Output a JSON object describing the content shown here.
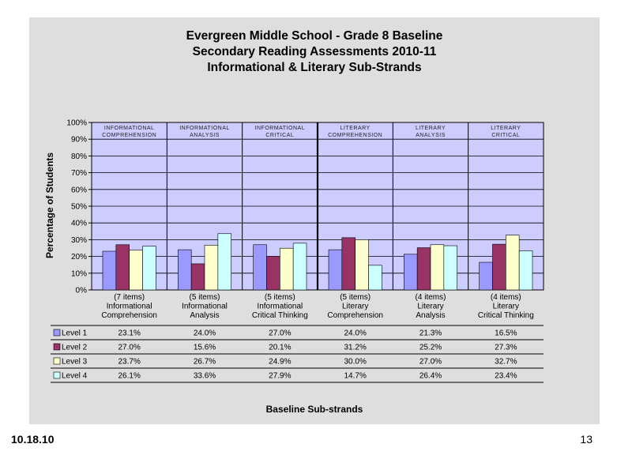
{
  "slide": {
    "title_lines": [
      "Evergreen Middle School  - Grade 8 Baseline",
      "Secondary Reading Assessments 2010-11",
      "Informational & Literary Sub-Strands"
    ],
    "footer_date": "10.18.10",
    "page_number": "13"
  },
  "chart_data": {
    "type": "bar",
    "title": "Evergreen Middle School  - Grade 8 Baseline Secondary Reading Assessments 2010-11 Informational & Literary Sub-Strands",
    "xlabel": "Baseline Sub-strands",
    "ylabel": "Percentage of Students",
    "ylim": [
      0,
      100
    ],
    "y_ticks": [
      "0%",
      "10%",
      "20%",
      "30%",
      "40%",
      "50%",
      "60%",
      "70%",
      "80%",
      "90%",
      "100%"
    ],
    "grid": true,
    "categories": [
      [
        "(7 items)",
        "Informational",
        "Comprehension"
      ],
      [
        "(5 items)",
        "Informational",
        "Analysis"
      ],
      [
        "(5 items)",
        "Informational",
        "Critical Thinking"
      ],
      [
        "(5 items)",
        "Literary",
        "Comprehension"
      ],
      [
        "(4 items)",
        "Literary",
        "Analysis"
      ],
      [
        "(4 items)",
        "Literary",
        "Critical Thinking"
      ]
    ],
    "banner_labels": [
      [
        "INFORMATIONAL",
        "COMPREHENSION"
      ],
      [
        "INFORMATIONAL",
        "ANALYSIS"
      ],
      [
        "INFORMATIONAL",
        "CRITICAL"
      ],
      [
        "LITERARY",
        "COMPREHENSION"
      ],
      [
        "LITERARY",
        "ANALYSIS"
      ],
      [
        "LITERARY",
        "CRITICAL"
      ]
    ],
    "series": [
      {
        "name": "Level 1",
        "color": "#9999ff",
        "values": [
          23.1,
          24.0,
          27.0,
          24.0,
          21.3,
          16.5
        ],
        "labels": [
          "23.1%",
          "24.0%",
          "27.0%",
          "24.0%",
          "21.3%",
          "16.5%"
        ]
      },
      {
        "name": "Level 2",
        "color": "#993366",
        "values": [
          27.0,
          15.6,
          20.1,
          31.2,
          25.2,
          27.3
        ],
        "labels": [
          "27.0%",
          "15.6%",
          "20.1%",
          "31.2%",
          "25.2%",
          "27.3%"
        ]
      },
      {
        "name": "Level 3",
        "color": "#ffffcc",
        "values": [
          23.7,
          26.7,
          24.9,
          30.0,
          27.0,
          32.7
        ],
        "labels": [
          "23.7%",
          "26.7%",
          "24.9%",
          "30.0%",
          "27.0%",
          "32.7%"
        ]
      },
      {
        "name": "Level 4",
        "color": "#ccffff",
        "values": [
          26.1,
          33.6,
          27.9,
          14.7,
          26.4,
          23.4
        ],
        "labels": [
          "26.1%",
          "33.6%",
          "27.9%",
          "14.7%",
          "26.4%",
          "23.4%"
        ]
      }
    ],
    "plot_background": "#ccccff",
    "legend_placement": "data-table-left"
  }
}
